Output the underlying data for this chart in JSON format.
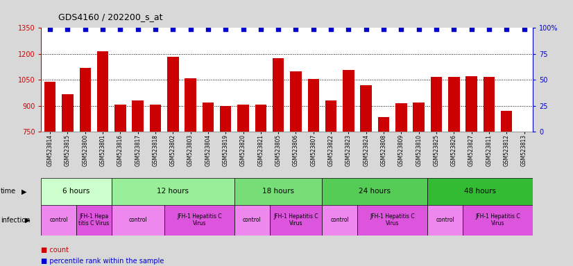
{
  "title": "GDS4160 / 202200_s_at",
  "samples": [
    "GSM523814",
    "GSM523815",
    "GSM523800",
    "GSM523801",
    "GSM523816",
    "GSM523817",
    "GSM523818",
    "GSM523802",
    "GSM523803",
    "GSM523804",
    "GSM523819",
    "GSM523820",
    "GSM523821",
    "GSM523805",
    "GSM523806",
    "GSM523807",
    "GSM523822",
    "GSM523823",
    "GSM523824",
    "GSM523808",
    "GSM523809",
    "GSM523810",
    "GSM523825",
    "GSM523826",
    "GSM523827",
    "GSM523811",
    "GSM523812",
    "GSM523813"
  ],
  "counts": [
    1040,
    965,
    1120,
    1215,
    905,
    930,
    905,
    1185,
    1060,
    920,
    900,
    905,
    905,
    1175,
    1100,
    1055,
    930,
    1105,
    1020,
    835,
    915,
    920,
    1065,
    1065,
    1070,
    1065,
    870,
    750
  ],
  "percentiles": [
    99,
    99,
    99,
    99,
    99,
    99,
    99,
    99,
    99,
    99,
    99,
    99,
    99,
    99,
    99,
    99,
    99,
    99,
    99,
    99,
    99,
    99,
    99,
    99,
    99,
    99,
    99,
    99
  ],
  "bar_color": "#cc0000",
  "dot_color": "#0000cc",
  "ylim_left": [
    750,
    1350
  ],
  "ylim_right": [
    0,
    100
  ],
  "yticks_left": [
    750,
    900,
    1050,
    1200,
    1350
  ],
  "yticks_right": [
    0,
    25,
    50,
    75,
    100
  ],
  "ytick_labels_right": [
    "0",
    "25",
    "50",
    "75",
    "100%"
  ],
  "grid_values": [
    900,
    1050,
    1200
  ],
  "time_groups": [
    {
      "label": "6 hours",
      "start": 0,
      "end": 4,
      "color": "#ccffcc"
    },
    {
      "label": "12 hours",
      "start": 4,
      "end": 11,
      "color": "#99ee99"
    },
    {
      "label": "18 hours",
      "start": 11,
      "end": 16,
      "color": "#77dd77"
    },
    {
      "label": "24 hours",
      "start": 16,
      "end": 22,
      "color": "#55cc55"
    },
    {
      "label": "48 hours",
      "start": 22,
      "end": 28,
      "color": "#33bb33"
    }
  ],
  "infection_groups": [
    {
      "label": "control",
      "start": 0,
      "end": 2,
      "color": "#ee88ee"
    },
    {
      "label": "JFH-1 Hepa\ntitis C Virus",
      "start": 2,
      "end": 4,
      "color": "#dd55dd"
    },
    {
      "label": "control",
      "start": 4,
      "end": 7,
      "color": "#ee88ee"
    },
    {
      "label": "JFH-1 Hepatitis C\nVirus",
      "start": 7,
      "end": 11,
      "color": "#dd55dd"
    },
    {
      "label": "control",
      "start": 11,
      "end": 13,
      "color": "#ee88ee"
    },
    {
      "label": "JFH-1 Hepatitis C\nVirus",
      "start": 13,
      "end": 16,
      "color": "#dd55dd"
    },
    {
      "label": "control",
      "start": 16,
      "end": 18,
      "color": "#ee88ee"
    },
    {
      "label": "JFH-1 Hepatitis C\nVirus",
      "start": 18,
      "end": 22,
      "color": "#dd55dd"
    },
    {
      "label": "control",
      "start": 22,
      "end": 24,
      "color": "#ee88ee"
    },
    {
      "label": "JFH-1 Hepatitis C\nVirus",
      "start": 24,
      "end": 28,
      "color": "#dd55dd"
    }
  ],
  "left_axis_color": "#cc0000",
  "right_axis_color": "#0000cc",
  "bg_color": "#d8d8d8",
  "plot_bg_color": "#ffffff",
  "legend_count": "count",
  "legend_pct": "percentile rank within the sample"
}
